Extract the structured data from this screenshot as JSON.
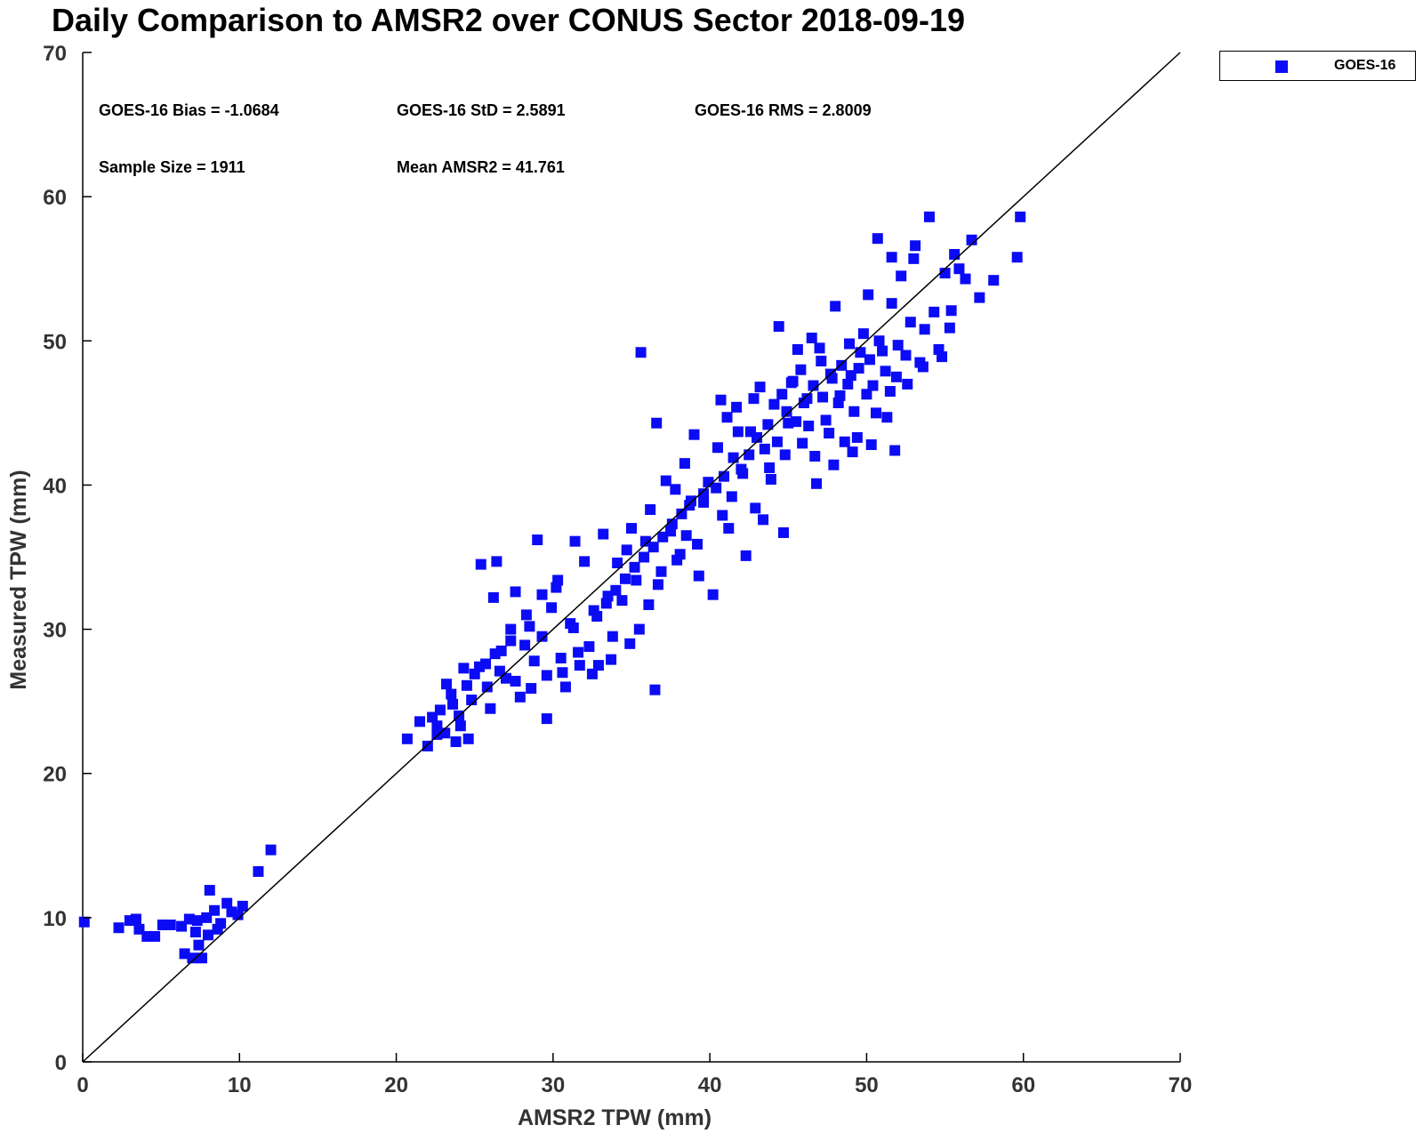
{
  "chart_data": {
    "type": "scatter",
    "title": "Daily Comparison to AMSR2 over CONUS Sector 2018-09-19",
    "xlabel": "AMSR2 TPW (mm)",
    "ylabel": "Measured TPW (mm)",
    "xlim": [
      0,
      70
    ],
    "ylim": [
      0,
      70
    ],
    "xticks": [
      "0",
      "10",
      "20",
      "30",
      "40",
      "50",
      "60",
      "70"
    ],
    "yticks": [
      "0",
      "10",
      "20",
      "30",
      "40",
      "50",
      "60",
      "70"
    ],
    "grid": false,
    "legend_position": "outside top-right",
    "reference_line": "y = x",
    "marker_color": "#0b0bf5",
    "stats": {
      "bias": "GOES-16 Bias = -1.0684",
      "std": "GOES-16 StD = 2.5891",
      "rms": "GOES-16 RMS = 2.8009",
      "sample_size": "Sample Size = 1911",
      "mean": "Mean AMSR2 = 41.761"
    },
    "series": [
      {
        "name": "GOES-16",
        "points": [
          [
            0.1,
            9.7
          ],
          [
            2.3,
            9.3
          ],
          [
            3.0,
            9.8
          ],
          [
            3.4,
            9.9
          ],
          [
            3.6,
            9.2
          ],
          [
            4.1,
            8.7
          ],
          [
            4.6,
            8.7
          ],
          [
            5.1,
            9.5
          ],
          [
            5.6,
            9.5
          ],
          [
            6.3,
            9.4
          ],
          [
            6.5,
            7.5
          ],
          [
            6.8,
            9.9
          ],
          [
            7.0,
            7.2
          ],
          [
            7.2,
            9.0
          ],
          [
            7.4,
            8.1
          ],
          [
            7.6,
            7.2
          ],
          [
            7.9,
            10.0
          ],
          [
            8.1,
            11.9
          ],
          [
            8.4,
            10.5
          ],
          [
            8.8,
            9.6
          ],
          [
            9.2,
            11.0
          ],
          [
            9.5,
            10.4
          ],
          [
            9.9,
            10.2
          ],
          [
            10.2,
            10.8
          ],
          [
            7.3,
            9.8
          ],
          [
            8.0,
            8.8
          ],
          [
            8.6,
            9.2
          ],
          [
            11.2,
            13.2
          ],
          [
            12.0,
            14.7
          ],
          [
            20.7,
            22.4
          ],
          [
            21.5,
            23.6
          ],
          [
            22.0,
            21.9
          ],
          [
            22.3,
            23.9
          ],
          [
            22.6,
            22.7
          ],
          [
            22.8,
            24.4
          ],
          [
            23.2,
            26.2
          ],
          [
            23.5,
            25.5
          ],
          [
            23.8,
            22.2
          ],
          [
            24.0,
            24.0
          ],
          [
            24.3,
            27.3
          ],
          [
            24.6,
            22.4
          ],
          [
            25.0,
            26.9
          ],
          [
            25.4,
            34.5
          ],
          [
            25.7,
            27.6
          ],
          [
            26.0,
            24.5
          ],
          [
            26.2,
            32.2
          ],
          [
            26.4,
            34.7
          ],
          [
            26.7,
            28.5
          ],
          [
            27.0,
            26.6
          ],
          [
            27.3,
            30.0
          ],
          [
            27.6,
            32.6
          ],
          [
            27.9,
            25.3
          ],
          [
            28.2,
            28.9
          ],
          [
            28.5,
            30.2
          ],
          [
            28.8,
            27.8
          ],
          [
            29.0,
            36.2
          ],
          [
            29.3,
            29.5
          ],
          [
            29.6,
            23.8
          ],
          [
            29.9,
            31.5
          ],
          [
            30.2,
            32.9
          ],
          [
            30.5,
            28.0
          ],
          [
            30.8,
            26.0
          ],
          [
            31.1,
            30.4
          ],
          [
            31.4,
            36.1
          ],
          [
            31.7,
            27.5
          ],
          [
            32.0,
            34.7
          ],
          [
            32.3,
            28.8
          ],
          [
            32.6,
            31.3
          ],
          [
            32.9,
            27.5
          ],
          [
            33.2,
            36.6
          ],
          [
            33.5,
            32.3
          ],
          [
            33.8,
            29.5
          ],
          [
            34.1,
            34.6
          ],
          [
            34.4,
            32.0
          ],
          [
            34.7,
            35.5
          ],
          [
            35.0,
            37.0
          ],
          [
            35.3,
            33.4
          ],
          [
            35.6,
            49.2
          ],
          [
            35.9,
            36.1
          ],
          [
            36.2,
            38.3
          ],
          [
            36.5,
            25.8
          ],
          [
            36.6,
            44.3
          ],
          [
            36.9,
            34.0
          ],
          [
            37.2,
            40.3
          ],
          [
            37.5,
            36.8
          ],
          [
            37.8,
            39.7
          ],
          [
            38.1,
            35.2
          ],
          [
            38.4,
            41.5
          ],
          [
            38.7,
            38.6
          ],
          [
            39.0,
            43.5
          ],
          [
            39.3,
            33.7
          ],
          [
            39.6,
            38.8
          ],
          [
            39.9,
            40.2
          ],
          [
            40.2,
            32.4
          ],
          [
            40.5,
            42.6
          ],
          [
            40.8,
            37.9
          ],
          [
            41.1,
            44.7
          ],
          [
            41.4,
            39.2
          ],
          [
            41.7,
            45.4
          ],
          [
            42.0,
            41.1
          ],
          [
            42.3,
            35.1
          ],
          [
            42.6,
            43.7
          ],
          [
            42.9,
            38.4
          ],
          [
            43.2,
            46.8
          ],
          [
            43.5,
            42.5
          ],
          [
            43.8,
            41.2
          ],
          [
            44.1,
            45.6
          ],
          [
            44.4,
            51.0
          ],
          [
            44.7,
            36.7
          ],
          [
            45.0,
            44.3
          ],
          [
            45.3,
            47.2
          ],
          [
            45.6,
            49.4
          ],
          [
            45.9,
            42.9
          ],
          [
            46.2,
            46.0
          ],
          [
            46.5,
            50.2
          ],
          [
            46.8,
            40.1
          ],
          [
            47.1,
            48.6
          ],
          [
            47.4,
            44.5
          ],
          [
            47.7,
            47.7
          ],
          [
            48.0,
            52.4
          ],
          [
            48.3,
            46.2
          ],
          [
            48.6,
            43.0
          ],
          [
            48.9,
            49.8
          ],
          [
            49.2,
            45.1
          ],
          [
            49.5,
            48.1
          ],
          [
            49.8,
            50.5
          ],
          [
            50.1,
            53.2
          ],
          [
            50.4,
            46.9
          ],
          [
            50.7,
            57.1
          ],
          [
            51.0,
            49.3
          ],
          [
            51.3,
            44.7
          ],
          [
            51.6,
            52.6
          ],
          [
            51.9,
            47.5
          ],
          [
            52.2,
            54.5
          ],
          [
            52.5,
            49.0
          ],
          [
            52.8,
            51.3
          ],
          [
            53.1,
            56.6
          ],
          [
            53.4,
            48.5
          ],
          [
            53.7,
            50.8
          ],
          [
            54.0,
            58.6
          ],
          [
            54.3,
            52.0
          ],
          [
            54.6,
            49.4
          ],
          [
            55.0,
            54.7
          ],
          [
            55.3,
            50.9
          ],
          [
            55.6,
            56.0
          ],
          [
            55.9,
            55.0
          ],
          [
            56.3,
            54.3
          ],
          [
            56.7,
            57.0
          ],
          [
            57.2,
            53.0
          ],
          [
            58.1,
            54.2
          ],
          [
            59.6,
            55.8
          ],
          [
            59.8,
            58.6
          ],
          [
            42.5,
            42.1
          ],
          [
            43.0,
            43.3
          ],
          [
            43.7,
            44.2
          ],
          [
            44.3,
            43.0
          ],
          [
            44.9,
            45.1
          ],
          [
            45.5,
            44.4
          ],
          [
            46.0,
            45.7
          ],
          [
            46.6,
            46.9
          ],
          [
            47.2,
            46.1
          ],
          [
            47.8,
            47.4
          ],
          [
            48.4,
            48.3
          ],
          [
            49.0,
            47.6
          ],
          [
            49.6,
            49.2
          ],
          [
            50.2,
            48.7
          ],
          [
            50.8,
            50.0
          ],
          [
            51.2,
            47.9
          ],
          [
            40.9,
            40.6
          ],
          [
            41.5,
            41.9
          ],
          [
            42.1,
            40.8
          ],
          [
            39.6,
            39.4
          ],
          [
            40.4,
            39.8
          ],
          [
            38.8,
            38.9
          ],
          [
            38.2,
            38.0
          ],
          [
            37.6,
            37.3
          ],
          [
            37.0,
            36.4
          ],
          [
            36.4,
            35.7
          ],
          [
            35.8,
            35.0
          ],
          [
            35.2,
            34.3
          ],
          [
            34.6,
            33.5
          ],
          [
            34.0,
            32.7
          ],
          [
            33.4,
            31.8
          ],
          [
            32.8,
            30.9
          ],
          [
            31.6,
            28.4
          ],
          [
            30.6,
            27.0
          ],
          [
            29.6,
            26.8
          ],
          [
            28.6,
            25.9
          ],
          [
            27.6,
            26.4
          ],
          [
            26.6,
            27.1
          ],
          [
            25.8,
            26.0
          ],
          [
            24.8,
            25.1
          ],
          [
            24.1,
            23.3
          ],
          [
            23.1,
            22.8
          ],
          [
            44.6,
            46.3
          ],
          [
            45.2,
            47.1
          ],
          [
            45.8,
            48.0
          ],
          [
            46.3,
            44.1
          ],
          [
            47.0,
            49.5
          ],
          [
            47.6,
            43.6
          ],
          [
            48.2,
            45.7
          ],
          [
            48.8,
            47.0
          ],
          [
            49.4,
            43.3
          ],
          [
            50.0,
            46.3
          ],
          [
            50.6,
            45.0
          ],
          [
            51.5,
            46.5
          ],
          [
            52.0,
            49.7
          ],
          [
            52.6,
            47.0
          ],
          [
            41.8,
            43.7
          ],
          [
            41.2,
            37.0
          ],
          [
            40.7,
            45.9
          ],
          [
            43.9,
            40.4
          ],
          [
            43.4,
            37.6
          ],
          [
            44.8,
            42.1
          ],
          [
            42.8,
            46.0
          ],
          [
            39.2,
            35.9
          ],
          [
            38.5,
            36.5
          ],
          [
            37.9,
            34.8
          ],
          [
            36.7,
            33.1
          ],
          [
            36.1,
            31.7
          ],
          [
            35.5,
            30.0
          ],
          [
            34.9,
            29.0
          ],
          [
            33.7,
            27.9
          ],
          [
            32.5,
            26.9
          ],
          [
            31.3,
            30.1
          ],
          [
            30.3,
            33.4
          ],
          [
            29.3,
            32.4
          ],
          [
            28.3,
            31.0
          ],
          [
            27.3,
            29.2
          ],
          [
            26.3,
            28.3
          ],
          [
            25.3,
            27.4
          ],
          [
            24.5,
            26.1
          ],
          [
            23.6,
            24.8
          ],
          [
            22.6,
            23.3
          ],
          [
            46.7,
            42.0
          ],
          [
            49.1,
            42.3
          ],
          [
            51.8,
            42.4
          ],
          [
            50.3,
            42.8
          ],
          [
            47.9,
            41.4
          ],
          [
            53.6,
            48.2
          ],
          [
            54.8,
            48.9
          ],
          [
            55.4,
            52.1
          ],
          [
            53.0,
            55.7
          ],
          [
            51.6,
            55.8
          ]
        ]
      }
    ]
  }
}
